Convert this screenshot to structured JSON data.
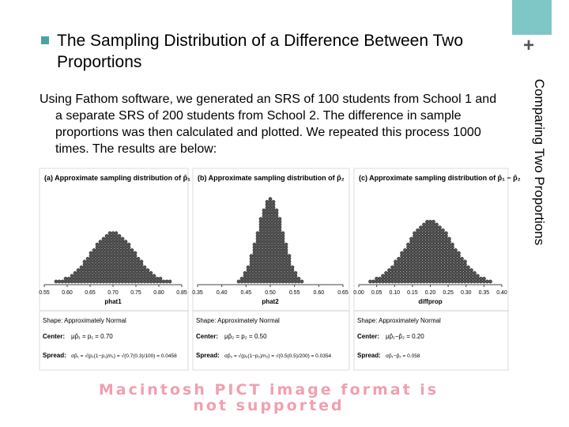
{
  "slide": {
    "bullet_title": "The Sampling Distribution of a Difference Between Two Proportions",
    "side_title": "Comparing Two Proportions",
    "body": "Using Fathom software, we generated an SRS of 100 students from School 1 and a separate SRS of 200 students from School 2. The difference in sample proportions was then calculated and plotted.  We repeated this process 1000 times.  The results are below:",
    "panels": [
      {
        "title": "(a) Approximate sampling distribution of p̂₁",
        "ticks": [
          "0.55",
          "0.60",
          "0.65",
          "0.70",
          "0.75",
          "0.80",
          "0.85"
        ],
        "variable": "phat1",
        "shape": "Shape: Approximately Normal",
        "center_label": "Center:",
        "center": "μp̂₁ = p₁ = 0.70",
        "spread_label": "Spread:",
        "spread": "σp̂₁ = √(p₁(1−p₁)/n₁) = √(0.7(0.3)/100) = 0.0458"
      },
      {
        "title": "(b) Approximate sampling distribution of p̂₂",
        "ticks": [
          "0.35",
          "0.40",
          "0.45",
          "0.50",
          "0.55",
          "0.60",
          "0.65"
        ],
        "variable": "phat2",
        "shape": "Shape: Approximately Normal",
        "center_label": "Center:",
        "center": "μp̂₂ = p₂ = 0.50",
        "spread_label": "Spread:",
        "spread": "σp̂₂ = √(p₂(1−p₂)/n₂) = √(0.5(0.5)/200) = 0.0354"
      },
      {
        "title": "(c) Approximate sampling distribution of p̂₁ − p̂₂",
        "ticks": [
          "0.00",
          "0.05",
          "0.10",
          "0.15",
          "0.20",
          "0.25",
          "0.30",
          "0.35",
          "0.40"
        ],
        "variable": "diffprop",
        "shape": "Shape: Approximately Normal",
        "center_label": "Center:",
        "center": "μp̂₁−p̂₂ = 0.20",
        "spread_label": "Spread:",
        "spread": "σp̂₁−p̂₂ = 0.058"
      }
    ],
    "unsupported_image": "Macintosh PICT image format is not supported"
  }
}
